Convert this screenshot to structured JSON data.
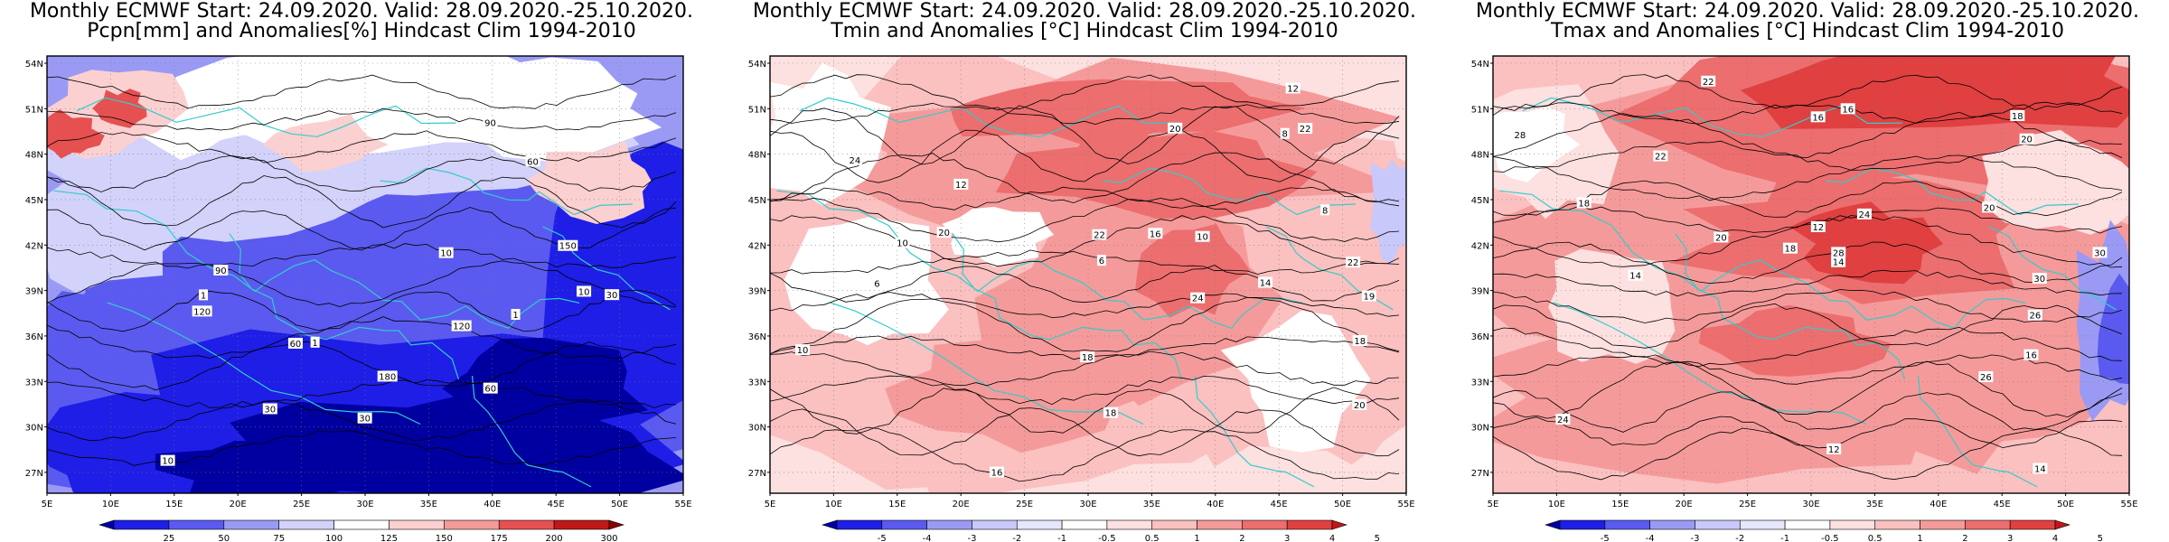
{
  "panels": [
    {
      "id": "pcpn",
      "title_line1": "Monthly ECMWF Start: 24.09.2020. Valid: 28.09.2020.-25.10.2020.",
      "title_line2": "Pcpn[mm] and Anomalies[%] Hindcast Clim 1994-2010",
      "colorbar": {
        "labels": [
          "25",
          "50",
          "75",
          "100",
          "125",
          "150",
          "175",
          "200",
          "300"
        ],
        "colors": [
          "#0000a0",
          "#1e1ee6",
          "#5a5af0",
          "#9a9af5",
          "#d2d2fa",
          "#ffffff",
          "#fbd0d0",
          "#f59a9a",
          "#e65050",
          "#c01818",
          "#8a0000"
        ]
      },
      "contour_labels": [
        "180",
        "150",
        "120",
        "90",
        "60",
        "30",
        "10",
        "1",
        "90",
        "60",
        "30",
        "10",
        "1",
        "120",
        "60",
        "30",
        "10",
        "1"
      ]
    },
    {
      "id": "tmin",
      "title_line1": "Monthly ECMWF Start: 24.09.2020. Valid: 28.09.2020.-25.10.2020.",
      "title_line2": "Tmin and Anomalies [°C] Hindcast Clim 1994-2010",
      "colorbar": {
        "labels": [
          "-5",
          "-4",
          "-3",
          "-2",
          "-1",
          "-0.5",
          "0.5",
          "1",
          "2",
          "3",
          "4",
          "5"
        ],
        "colors": [
          "#0000a0",
          "#1e1ee6",
          "#5a5af0",
          "#9a9af5",
          "#c8c8fa",
          "#e6e6fc",
          "#ffffff",
          "#fde0e0",
          "#fbc0c0",
          "#f59a9a",
          "#ec6e6e",
          "#e04040",
          "#c01818"
        ]
      },
      "contour_labels": [
        "18",
        "6",
        "8",
        "10",
        "12",
        "14",
        "16",
        "20",
        "22",
        "24",
        "10",
        "12",
        "16",
        "20",
        "22",
        "18",
        "8",
        "6",
        "10",
        "19",
        "24",
        "20",
        "22",
        "18"
      ]
    },
    {
      "id": "tmax",
      "title_line1": "Monthly ECMWF Start: 24.09.2020. Valid: 28.09.2020.-25.10.2020.",
      "title_line2": "Tmax and Anomalies [°C] Hindcast Clim 1994-2010",
      "colorbar": {
        "labels": [
          "-5",
          "-4",
          "-3",
          "-2",
          "-1",
          "-0.5",
          "0.5",
          "1",
          "2",
          "3",
          "4",
          "5"
        ],
        "colors": [
          "#0000a0",
          "#1e1ee6",
          "#5a5af0",
          "#9a9af5",
          "#c8c8fa",
          "#e6e6fc",
          "#ffffff",
          "#fde0e0",
          "#fbc0c0",
          "#f59a9a",
          "#ec6e6e",
          "#e04040",
          "#c01818"
        ]
      },
      "contour_labels": [
        "12",
        "14",
        "16",
        "18",
        "20",
        "22",
        "24",
        "26",
        "28",
        "30",
        "14",
        "16",
        "18",
        "20",
        "22",
        "24",
        "26",
        "28",
        "30",
        "16",
        "18",
        "12",
        "14",
        "20"
      ]
    }
  ],
  "axes": {
    "lat_labels": [
      "54N",
      "51N",
      "48N",
      "45N",
      "42N",
      "39N",
      "36N",
      "33N",
      "30N",
      "27N"
    ],
    "lon_labels": [
      "5E",
      "10E",
      "15E",
      "20E",
      "25E",
      "30E",
      "35E",
      "40E",
      "45E",
      "50E",
      "55E"
    ]
  },
  "colors": {
    "coast": "#33cccc",
    "contour": "#000000",
    "frame": "#000000"
  }
}
